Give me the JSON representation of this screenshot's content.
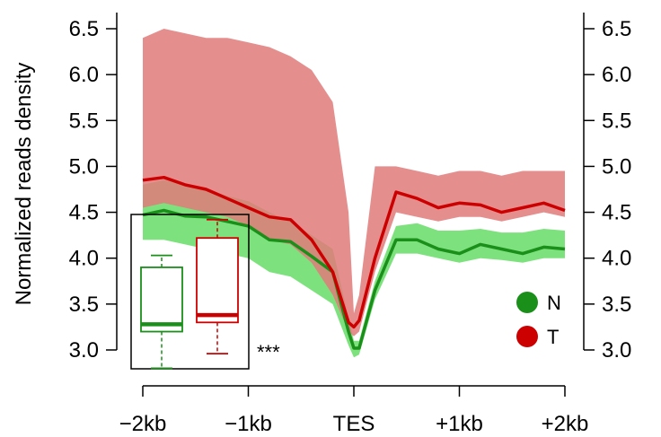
{
  "chart_data": {
    "type": "line",
    "ylabel": "Normalized reads density",
    "xlabel": "",
    "x_range": [
      -2,
      2
    ],
    "x_unit": "kb",
    "ylim": [
      2.87,
      6.62
    ],
    "x_ticks": [
      {
        "x": -2,
        "label": "−2kb"
      },
      {
        "x": -1,
        "label": "−1kb"
      },
      {
        "x": 0,
        "label": "TES"
      },
      {
        "x": 1,
        "label": "+1kb"
      },
      {
        "x": 2,
        "label": "+2kb"
      }
    ],
    "y_ticks": [
      {
        "y": 3.0,
        "label": "3.0"
      },
      {
        "y": 3.5,
        "label": "3.5"
      },
      {
        "y": 4.0,
        "label": "4.0"
      },
      {
        "y": 4.5,
        "label": "4.5"
      },
      {
        "y": 5.0,
        "label": "5.0"
      },
      {
        "y": 5.5,
        "label": "5.5"
      },
      {
        "y": 6.0,
        "label": "6.0"
      },
      {
        "y": 6.5,
        "label": "6.5"
      }
    ],
    "grid": false,
    "legend_position": "bottom-right",
    "legend": [
      {
        "label": "N",
        "color": "#1a8f1a"
      },
      {
        "label": "T",
        "color": "#cc0000"
      }
    ],
    "series": [
      {
        "name": "N",
        "color": "#1a8f1a",
        "band_color": "#66dd66",
        "x": [
          -2.0,
          -1.8,
          -1.6,
          -1.4,
          -1.2,
          -1.0,
          -0.8,
          -0.6,
          -0.4,
          -0.2,
          -0.05,
          0.0,
          0.05,
          0.2,
          0.4,
          0.6,
          0.8,
          1.0,
          1.2,
          1.4,
          1.6,
          1.8,
          2.0
        ],
        "values": [
          4.47,
          4.52,
          4.46,
          4.45,
          4.4,
          4.35,
          4.2,
          4.18,
          4.02,
          3.85,
          3.2,
          3.02,
          3.02,
          3.65,
          4.2,
          4.2,
          4.1,
          4.05,
          4.15,
          4.1,
          4.05,
          4.12,
          4.1
        ],
        "lower": [
          4.2,
          4.2,
          4.15,
          4.1,
          4.05,
          4.0,
          3.85,
          3.8,
          3.65,
          3.5,
          3.05,
          2.92,
          2.95,
          3.55,
          4.05,
          4.05,
          4.0,
          3.95,
          4.0,
          3.98,
          3.95,
          4.0,
          4.0
        ],
        "upper": [
          4.8,
          4.85,
          4.8,
          4.75,
          4.68,
          4.62,
          4.5,
          4.4,
          4.25,
          4.1,
          3.35,
          3.1,
          3.1,
          3.75,
          4.35,
          4.38,
          4.3,
          4.3,
          4.32,
          4.28,
          4.28,
          4.32,
          4.3
        ]
      },
      {
        "name": "T",
        "color": "#cc0000",
        "band_color": "#e07a7a",
        "x": [
          -2.0,
          -1.8,
          -1.6,
          -1.4,
          -1.2,
          -1.0,
          -0.8,
          -0.6,
          -0.4,
          -0.2,
          -0.05,
          0.0,
          0.05,
          0.2,
          0.4,
          0.6,
          0.8,
          1.0,
          1.2,
          1.4,
          1.6,
          1.8,
          2.0
        ],
        "values": [
          4.85,
          4.88,
          4.8,
          4.75,
          4.65,
          4.55,
          4.45,
          4.42,
          4.2,
          3.85,
          3.3,
          3.25,
          3.32,
          4.0,
          4.72,
          4.65,
          4.55,
          4.6,
          4.58,
          4.5,
          4.55,
          4.6,
          4.52
        ],
        "lower": [
          4.55,
          4.6,
          4.55,
          4.5,
          4.45,
          4.35,
          4.2,
          4.15,
          3.95,
          3.6,
          3.2,
          3.15,
          3.2,
          3.85,
          4.5,
          4.45,
          4.4,
          4.45,
          4.45,
          4.4,
          4.45,
          4.5,
          4.45
        ],
        "upper": [
          6.4,
          6.5,
          6.45,
          6.4,
          6.4,
          6.35,
          6.3,
          6.2,
          6.05,
          5.7,
          4.5,
          3.4,
          3.6,
          5.0,
          5.0,
          4.95,
          4.9,
          4.95,
          4.95,
          4.9,
          4.95,
          4.95,
          4.95
        ]
      }
    ],
    "inset": {
      "type": "boxplot",
      "annotation": "***",
      "boxes": [
        {
          "name": "N",
          "color": "#1a8f1a",
          "min": 2.8,
          "q1": 3.2,
          "median": 3.28,
          "q3": 3.9,
          "max": 4.03
        },
        {
          "name": "T",
          "color": "#cc0000",
          "min": 2.96,
          "q1": 3.3,
          "median": 3.38,
          "q3": 4.22,
          "max": 4.42
        }
      ]
    }
  }
}
